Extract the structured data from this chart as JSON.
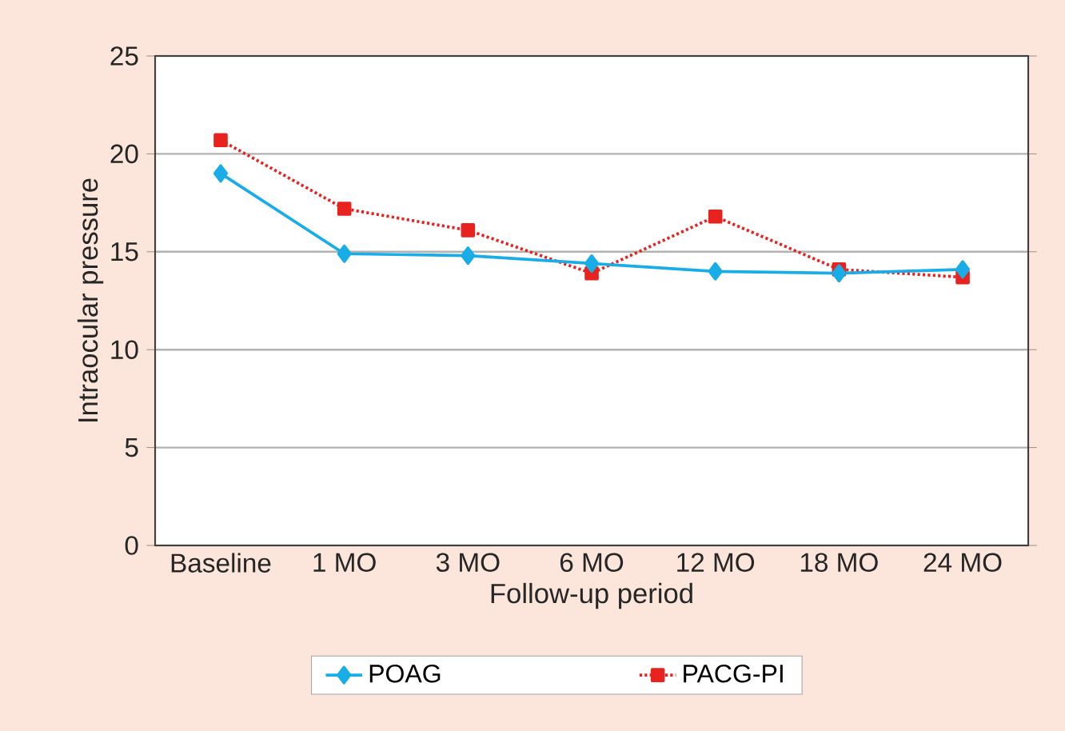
{
  "chart_data": {
    "type": "line",
    "xlabel": "Follow-up period",
    "ylabel": "Intraocular pressure",
    "categories": [
      "Baseline",
      "1 MO",
      "3 MO",
      "6 MO",
      "12 MO",
      "18 MO",
      "24 MO"
    ],
    "series": [
      {
        "name": "POAG",
        "color": "#19ade8",
        "marker": "diamond",
        "line_style": "solid",
        "values": [
          19.0,
          14.9,
          14.8,
          14.4,
          14.0,
          13.9,
          14.1
        ]
      },
      {
        "name": "PACG-PI",
        "color": "#e8231f",
        "marker": "square",
        "line_style": "dotted",
        "values": [
          20.7,
          17.2,
          16.1,
          13.9,
          16.8,
          14.1,
          13.7
        ]
      }
    ],
    "ylim": [
      0,
      25
    ],
    "yticks": [
      0,
      5,
      10,
      15,
      20,
      25
    ],
    "grid": "y",
    "legend": "bottom"
  }
}
